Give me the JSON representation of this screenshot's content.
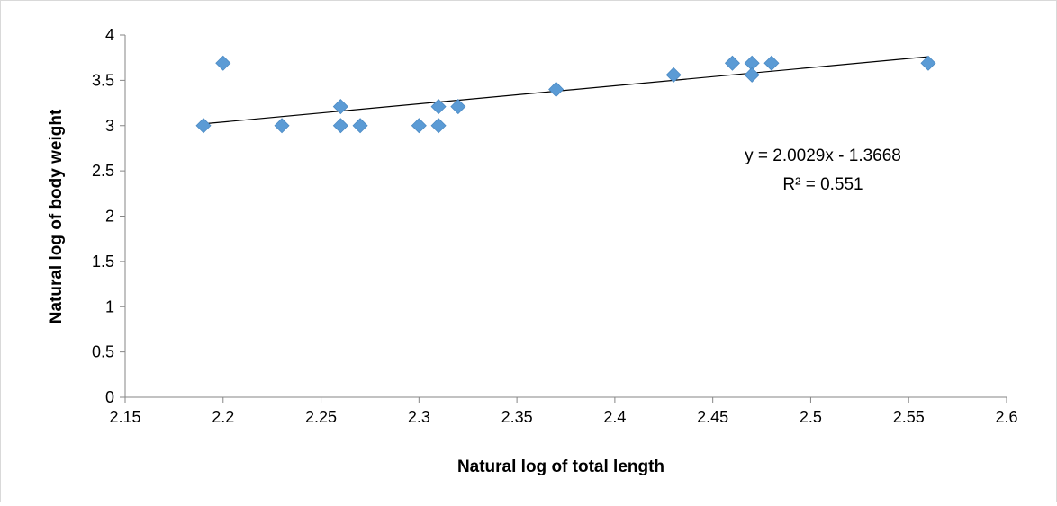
{
  "chart_data": {
    "type": "scatter",
    "xlabel": "Natural log of total length",
    "ylabel": "Natural log of body weight",
    "xlim": [
      2.15,
      2.6
    ],
    "ylim": [
      0,
      4
    ],
    "xticks": [
      "2.15",
      "2.2",
      "2.25",
      "2.3",
      "2.35",
      "2.4",
      "2.45",
      "2.5",
      "2.55",
      "2.6"
    ],
    "yticks": [
      "0",
      "0.5",
      "1",
      "1.5",
      "2",
      "2.5",
      "3",
      "3.5",
      "4"
    ],
    "grid": false,
    "legend": "none",
    "marker": "diamond",
    "marker_color": "#5b9bd5",
    "series": [
      {
        "points": [
          {
            "x": 2.19,
            "y": 3.0
          },
          {
            "x": 2.2,
            "y": 3.69
          },
          {
            "x": 2.23,
            "y": 3.0
          },
          {
            "x": 2.26,
            "y": 3.21
          },
          {
            "x": 2.26,
            "y": 3.0
          },
          {
            "x": 2.27,
            "y": 3.0
          },
          {
            "x": 2.3,
            "y": 3.0
          },
          {
            "x": 2.31,
            "y": 3.21
          },
          {
            "x": 2.31,
            "y": 3.0
          },
          {
            "x": 2.32,
            "y": 3.21
          },
          {
            "x": 2.37,
            "y": 3.4
          },
          {
            "x": 2.43,
            "y": 3.56
          },
          {
            "x": 2.46,
            "y": 3.69
          },
          {
            "x": 2.47,
            "y": 3.69
          },
          {
            "x": 2.47,
            "y": 3.56
          },
          {
            "x": 2.48,
            "y": 3.69
          },
          {
            "x": 2.56,
            "y": 3.69
          }
        ]
      }
    ],
    "trendline": {
      "type": "linear",
      "slope": 2.0029,
      "intercept": -1.3668,
      "x_range": [
        2.19,
        2.56
      ],
      "equation": "y = 2.0029x - 1.3668",
      "r_squared": "R² = 0.551",
      "color": "#000000"
    }
  }
}
